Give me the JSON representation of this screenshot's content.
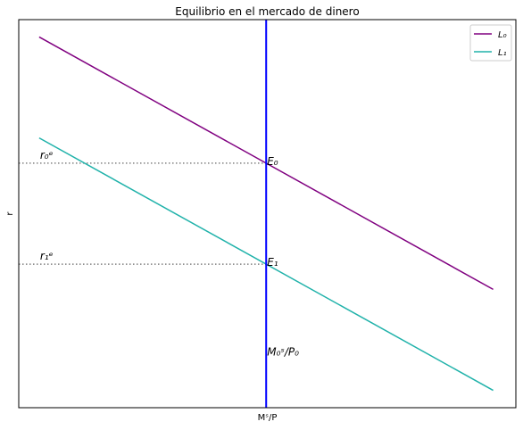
{
  "chart_data": {
    "type": "line",
    "title": "Equilibrio en el mercado de dinero",
    "xlabel": "Mˢ/P",
    "ylabel": "r",
    "x": [
      0,
      10
    ],
    "series": [
      {
        "name": "L0",
        "label": "L₀",
        "y": [
          13,
          5
        ],
        "color": "#800080"
      },
      {
        "name": "L1",
        "label": "L₁",
        "y": [
          9.8,
          1.8
        ],
        "color": "#20b2aa"
      }
    ],
    "supply_line": {
      "x": 5,
      "label": "M₀ˢ/P₀",
      "color": "#0000ff"
    },
    "equilibria": [
      {
        "name": "E0",
        "label": "E₀",
        "x": 5,
        "y": 9,
        "rate_label": "r₀ᵉ"
      },
      {
        "name": "E1",
        "label": "E₁",
        "x": 5,
        "y": 5.8,
        "rate_label": "r₁ᵉ"
      }
    ],
    "xlim": [
      -0.45,
      10.5
    ],
    "ylim": [
      1.25,
      13.55
    ],
    "grid": false,
    "legend": "top-right"
  }
}
